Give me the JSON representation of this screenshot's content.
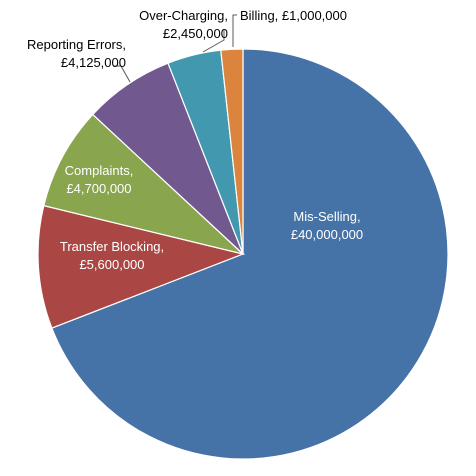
{
  "chart_data": {
    "type": "pie",
    "slices": [
      {
        "label": "Mis-Selling",
        "value": 40000000,
        "value_text": "£40,000,000",
        "color": "#4572A7"
      },
      {
        "label": "Transfer Blocking",
        "value": 5600000,
        "value_text": "£5,600,000",
        "color": "#AA4643"
      },
      {
        "label": "Complaints",
        "value": 4700000,
        "value_text": "£4,700,000",
        "color": "#89A54E"
      },
      {
        "label": "Reporting Errors",
        "value": 4125000,
        "value_text": "£4,125,000",
        "color": "#71588F"
      },
      {
        "label": "Over-Charging",
        "value": 2450000,
        "value_text": "£2,450,000",
        "color": "#4198AF"
      },
      {
        "label": "Billing",
        "value": 1000000,
        "value_text": "£1,000,000",
        "color": "#DB843D"
      }
    ]
  }
}
